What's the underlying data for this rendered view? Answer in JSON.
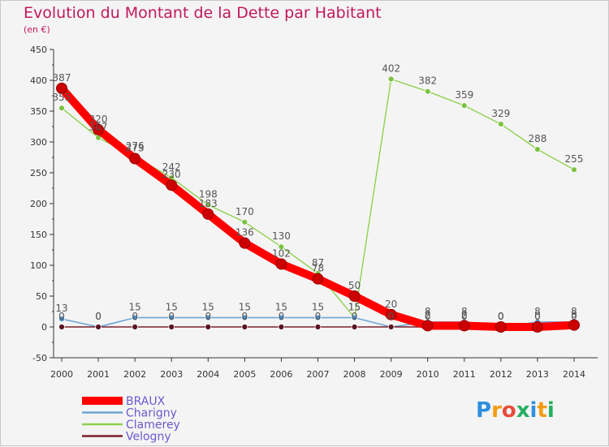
{
  "title": "Evolution du Montant de la Dette par Habitant",
  "subtitle": "(en €)",
  "logo": {
    "text": "Proxiti",
    "letter_colors": [
      "#2f8fe0",
      "#f39c12",
      "#e74c3c",
      "#27ae60",
      "#2f8fe0",
      "#f39c12",
      "#27ae60"
    ]
  },
  "chart_data": {
    "type": "line",
    "title": "Evolution du Montant de la Dette par Habitant",
    "ylabel": "(en €)",
    "xlabel": "",
    "ylim": [
      -50,
      450
    ],
    "yticks": [
      -50,
      0,
      50,
      100,
      150,
      200,
      250,
      300,
      350,
      400,
      450
    ],
    "x": [
      "2000",
      "2001",
      "2002",
      "2003",
      "2004",
      "2005",
      "2006",
      "2007",
      "2008",
      "2009",
      "2010",
      "2011",
      "2012",
      "2013",
      "2014"
    ],
    "grid": false,
    "legend_position": "bottom-left",
    "series": [
      {
        "name": "BRAUX",
        "color": "#ff0000",
        "values": [
          387,
          320,
          273,
          230,
          183,
          136,
          102,
          78,
          50,
          20,
          2,
          2,
          0,
          0,
          3
        ],
        "labels": [
          "387",
          "320",
          "273",
          "230",
          "183",
          "136",
          "102",
          "78",
          "50",
          "20",
          "2",
          "2",
          "0",
          "0",
          "3"
        ]
      },
      {
        "name": "Charigny",
        "color": "#6aa6d6",
        "values": [
          13,
          0,
          15,
          15,
          15,
          15,
          15,
          15,
          15,
          0,
          8,
          8,
          0,
          8,
          8
        ],
        "labels": [
          "13",
          "0",
          "15",
          "15",
          "15",
          "15",
          "15",
          "15",
          "15",
          "",
          "8",
          "8",
          "0",
          "8",
          "8"
        ]
      },
      {
        "name": "Clamerey",
        "color": "#8fd14f",
        "values": [
          355,
          307,
          276,
          242,
          198,
          170,
          130,
          87,
          15,
          402,
          382,
          359,
          329,
          288,
          255
        ],
        "labels": [
          "355",
          "307",
          "276",
          "242",
          "198",
          "170",
          "130",
          "87",
          "15",
          "402",
          "382",
          "359",
          "329",
          "288",
          "255"
        ]
      },
      {
        "name": "Velogny",
        "color": "#7a1f2b",
        "values": [
          0,
          0,
          0,
          0,
          0,
          0,
          0,
          0,
          0,
          0,
          0,
          0,
          0,
          0,
          0
        ],
        "labels": [
          "0",
          "0",
          "0",
          "0",
          "0",
          "0",
          "0",
          "0",
          "0",
          "0",
          "0",
          "0",
          "0",
          "0",
          "0"
        ]
      }
    ]
  }
}
